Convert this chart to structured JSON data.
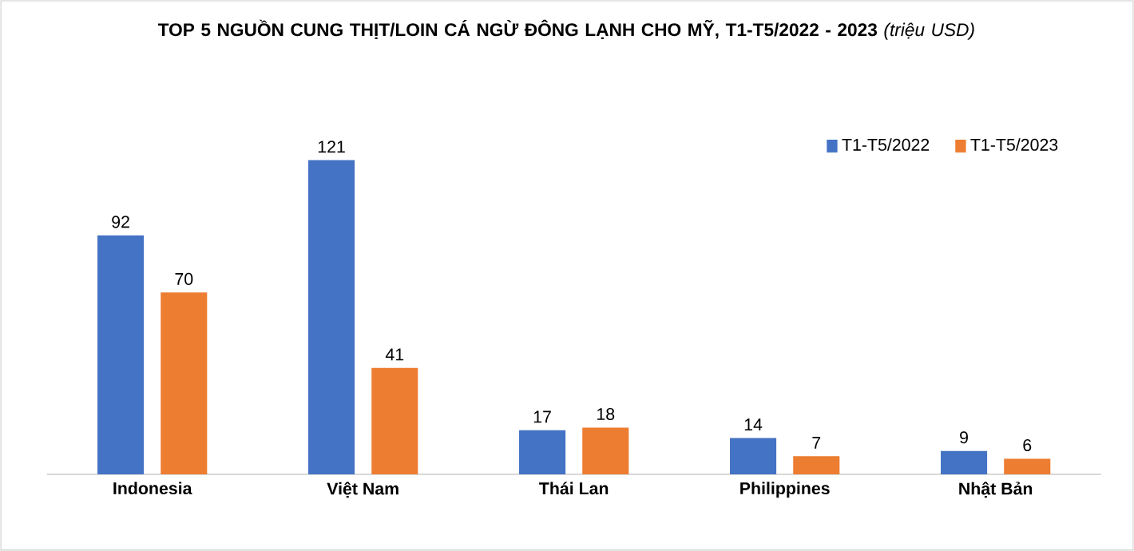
{
  "chart_data": {
    "type": "bar",
    "title": "**TOP 5 NGUỒN CUNG THỊT/LOIN CÁ NGỪ ĐÔNG LẠNH CHO MỸ, T1-T5/2022 - 2023** *(triệu USD)*",
    "categories": [
      "Indonesia",
      "Việt Nam",
      "Thái Lan",
      "Philippines",
      "Nhật Bản"
    ],
    "series": [
      {
        "name": "T1-T5/2022",
        "color": "#4472c4",
        "values": [
          92,
          121,
          17,
          14,
          9
        ]
      },
      {
        "name": "T1-T5/2023",
        "color": "#ed7d31",
        "values": [
          70,
          41,
          18,
          7,
          6
        ]
      }
    ],
    "data_labels": true,
    "legend": "top right"
  }
}
